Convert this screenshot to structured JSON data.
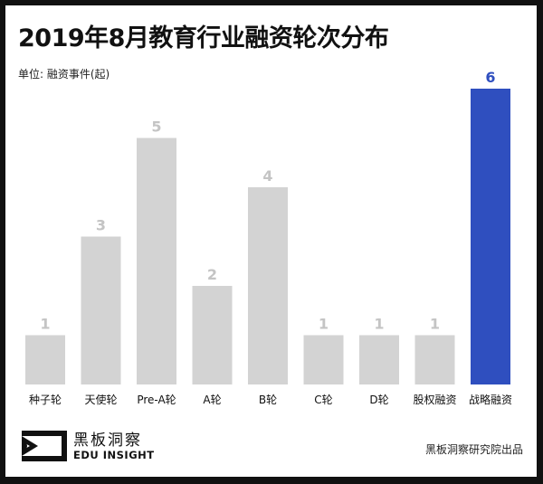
{
  "chart_data": {
    "type": "bar",
    "title": "2019年8月教育行业融资轮次分布",
    "unit_label": "单位: 融资事件(起)",
    "categories": [
      "种子轮",
      "天使轮",
      "Pre-A轮",
      "A轮",
      "B轮",
      "C轮",
      "D轮",
      "股权融资",
      "战略融资"
    ],
    "values": [
      1,
      3,
      5,
      2,
      4,
      1,
      1,
      1,
      6
    ],
    "ylim": [
      0,
      6
    ],
    "grid": false,
    "colors": {
      "default": "#d3d3d3",
      "highlight": "#2f4fbf",
      "default_label": "#c4c4c4"
    },
    "highlight_index": 8
  },
  "footer": {
    "logo_cn": "黑板洞察",
    "logo_en": "EDU INSIGHT",
    "credit": "黑板洞察研究院出品"
  }
}
